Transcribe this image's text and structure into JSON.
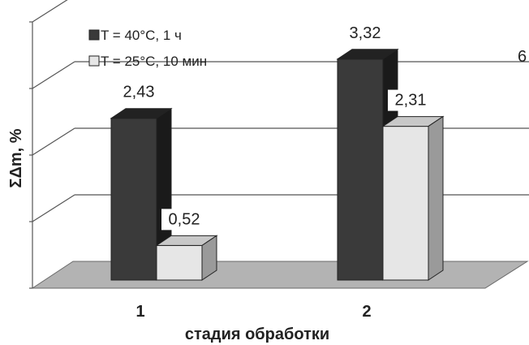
{
  "chart_data": {
    "type": "bar",
    "categories": [
      "1",
      "2"
    ],
    "series": [
      {
        "name": "T = 40°C, 1 ч",
        "values": [
          2.43,
          3.32
        ],
        "labels": [
          "2,43",
          "3,32"
        ],
        "color": "#3a3a3a"
      },
      {
        "name": "T = 25°C, 10 мин",
        "values": [
          0.52,
          2.31
        ],
        "labels": [
          "0,52",
          "2,31"
        ],
        "color": "#e6e6e6"
      }
    ],
    "xlabel": "стадия обработки",
    "ylabel": "ΣΔm, %",
    "ylim": [
      0,
      4
    ],
    "grid": true,
    "legend_position": "top-left",
    "style": "3d",
    "edge_mark": "6"
  }
}
